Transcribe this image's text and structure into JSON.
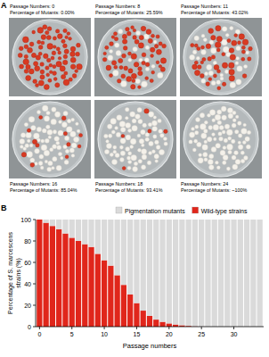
{
  "panel_a": {
    "label": "A",
    "plates": [
      {
        "passage": "Passage Numbers: 0",
        "percentage": "Percentage of Mutants: 0.00%",
        "mutants": 0.0
      },
      {
        "passage": "Passage Numbers: 8",
        "percentage": "Percentage of Mutants: 25.59%",
        "mutants": 25.59
      },
      {
        "passage": "Passage Numbers: 11",
        "percentage": "Percentage of Mutants: 43.02%",
        "mutants": 43.02
      },
      {
        "passage": "Passage Numbers: 16",
        "percentage": "Percentage of Mutants: 85.04%",
        "mutants": 85.04
      },
      {
        "passage": "Passage Numbers: 18",
        "percentage": "Percentage of Mutants: 93.41%",
        "mutants": 93.41
      },
      {
        "passage": "Passage Numbers: 24",
        "percentage": "Percentage of Mutants: ~100%",
        "mutants": 100
      }
    ]
  },
  "chart_data": {
    "type": "bar",
    "label": "B",
    "stacked": true,
    "xlabel": "Passage numbers",
    "ylabel": "Percentage of S. marcescens strains (%)",
    "x": [
      0,
      1,
      2,
      3,
      4,
      5,
      6,
      7,
      8,
      9,
      10,
      11,
      12,
      13,
      14,
      15,
      16,
      17,
      18,
      19,
      20,
      21,
      22,
      23,
      24,
      25,
      26,
      27,
      28,
      29,
      30,
      31,
      32,
      33,
      34
    ],
    "series": [
      {
        "name": "Wild-type strains",
        "color": "#e0261b",
        "values": [
          100,
          97,
          94,
          91,
          87,
          83,
          80,
          77,
          74.41,
          68,
          62,
          56.98,
          48,
          39,
          30,
          22,
          14.96,
          10,
          6.59,
          4.5,
          3,
          2,
          1.3,
          0.7,
          0.3,
          0.1,
          0,
          0,
          0,
          0,
          0,
          0,
          0,
          0,
          0
        ]
      },
      {
        "name": "Pigmentation mutants",
        "color": "#dadada",
        "values": [
          0,
          3,
          6,
          9,
          13,
          17,
          20,
          23,
          25.59,
          32,
          38,
          43.02,
          52,
          61,
          70,
          78,
          85.04,
          90,
          93.41,
          95.5,
          97,
          98,
          98.7,
          99.3,
          99.7,
          99.9,
          100,
          100,
          100,
          100,
          100,
          100,
          100,
          100,
          100
        ]
      }
    ],
    "xlim": [
      -0.6,
      34.6
    ],
    "xticks": [
      0,
      5,
      10,
      15,
      20,
      25,
      30
    ],
    "ylim": [
      0,
      100
    ],
    "yticks": [
      0,
      20,
      40,
      60,
      80,
      100
    ],
    "grid": false,
    "legend": "top"
  }
}
